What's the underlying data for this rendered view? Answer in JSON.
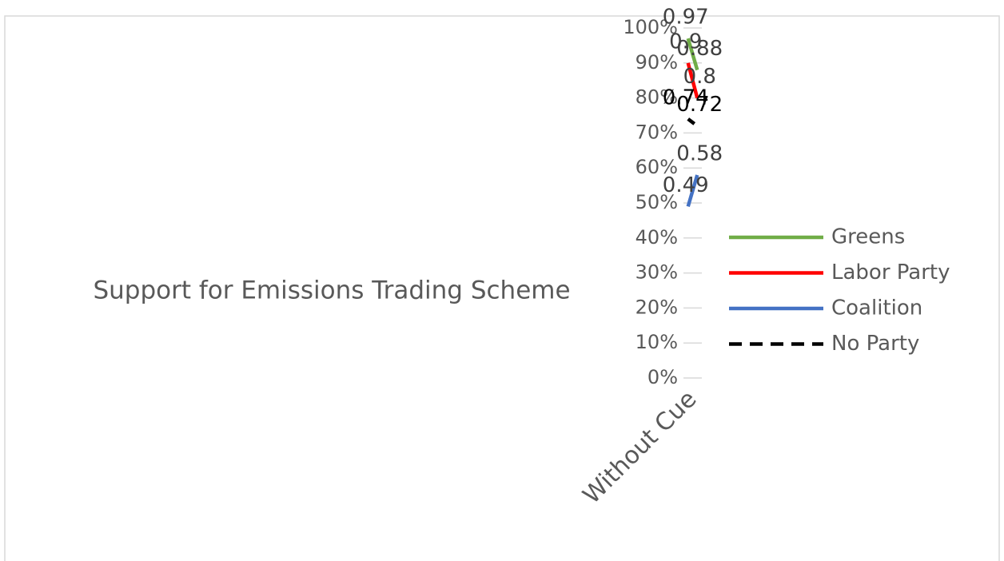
{
  "chart_data": {
    "type": "line",
    "title": "Support for Emissions Trading Scheme",
    "categories": [
      "Without Cue",
      null
    ],
    "series": [
      {
        "name": "Greens",
        "color": "#70ad47",
        "values": [
          0.97,
          0.88
        ]
      },
      {
        "name": "Labor Party",
        "color": "#ff0000",
        "values": [
          0.9,
          0.8
        ]
      },
      {
        "name": "Coalition",
        "color": "#4472c4",
        "values": [
          0.49,
          0.58
        ]
      },
      {
        "name": "No Party",
        "color": "#000000",
        "dashed": true,
        "values": [
          0.74,
          0.72
        ]
      }
    ],
    "ylim": [
      0,
      1
    ],
    "yticks": [
      {
        "value": 0,
        "label": "0%"
      },
      {
        "value": 0.1,
        "label": "10%"
      },
      {
        "value": 0.2,
        "label": "20%"
      },
      {
        "value": 0.3,
        "label": "30%"
      },
      {
        "value": 0.4,
        "label": "40%"
      },
      {
        "value": 0.5,
        "label": "50%"
      },
      {
        "value": 0.6,
        "label": "60%"
      },
      {
        "value": 0.7,
        "label": "70%"
      },
      {
        "value": 0.8,
        "label": "80%"
      },
      {
        "value": 0.9,
        "label": "90%"
      },
      {
        "value": 1,
        "label": "100%"
      }
    ],
    "grid": true,
    "legend": "right"
  }
}
